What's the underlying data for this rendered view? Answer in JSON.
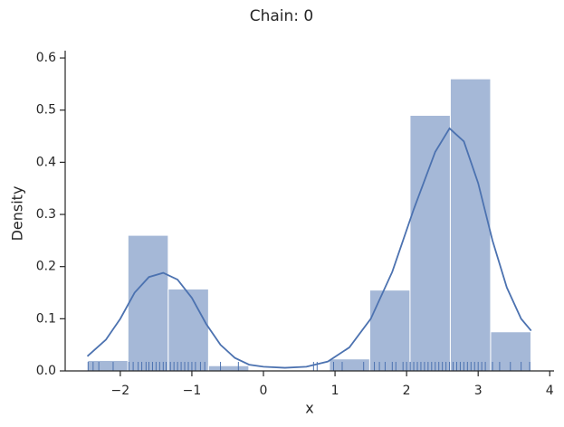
{
  "chart_data": {
    "type": "histogram",
    "title": "Chain: 0",
    "xlabel": "x",
    "ylabel": "Density",
    "color": "#4c72b0",
    "bins": [
      -2.456,
      -1.893,
      -1.33,
      -0.767,
      -0.204,
      0.359,
      0.922,
      1.485,
      2.048,
      2.611,
      3.174,
      3.737
    ],
    "values": [
      0.02,
      0.26,
      0.157,
      0.01,
      0,
      0,
      0.023,
      0.155,
      0.49,
      0.56,
      0.075
    ],
    "kde": {
      "x": [
        -2.46,
        -2.2,
        -2.0,
        -1.8,
        -1.6,
        -1.4,
        -1.2,
        -1.0,
        -0.8,
        -0.6,
        -0.4,
        -0.2,
        0,
        0.3,
        0.6,
        0.9,
        1.2,
        1.5,
        1.8,
        2.1,
        2.4,
        2.6,
        2.8,
        3.0,
        3.2,
        3.4,
        3.6,
        3.74
      ],
      "y": [
        0.028,
        0.06,
        0.1,
        0.15,
        0.18,
        0.188,
        0.175,
        0.14,
        0.09,
        0.05,
        0.025,
        0.012,
        0.008,
        0.006,
        0.008,
        0.018,
        0.045,
        0.1,
        0.19,
        0.31,
        0.42,
        0.465,
        0.44,
        0.36,
        0.25,
        0.16,
        0.1,
        0.077
      ]
    },
    "rug": [
      -2.45,
      -2.38,
      -2.3,
      -2.1,
      -1.88,
      -1.82,
      -1.75,
      -1.7,
      -1.64,
      -1.6,
      -1.55,
      -1.5,
      -1.45,
      -1.4,
      -1.36,
      -1.3,
      -1.25,
      -1.2,
      -1.15,
      -1.1,
      -1.05,
      -1.0,
      -0.95,
      -0.88,
      -0.82,
      -0.6,
      -0.35,
      0.7,
      0.75,
      0.98,
      1.1,
      1.4,
      1.55,
      1.62,
      1.7,
      1.8,
      1.85,
      1.95,
      2.0,
      2.05,
      2.1,
      2.15,
      2.2,
      2.25,
      2.3,
      2.35,
      2.4,
      2.45,
      2.5,
      2.55,
      2.6,
      2.65,
      2.7,
      2.75,
      2.8,
      2.85,
      2.9,
      2.95,
      3.0,
      3.05,
      3.1,
      3.2,
      3.3,
      3.45,
      3.6,
      3.72
    ],
    "xlim": [
      -2.77,
      4.06
    ],
    "ylim": [
      0,
      0.614
    ],
    "xticks": [
      {
        "value": -2,
        "label": "−2"
      },
      {
        "value": -1,
        "label": "−1"
      },
      0,
      1,
      2,
      3,
      4
    ],
    "yticks": [
      {
        "value": 0,
        "label": "0.0"
      },
      0.1,
      0.2,
      0.3,
      0.4,
      0.5,
      0.6
    ]
  }
}
